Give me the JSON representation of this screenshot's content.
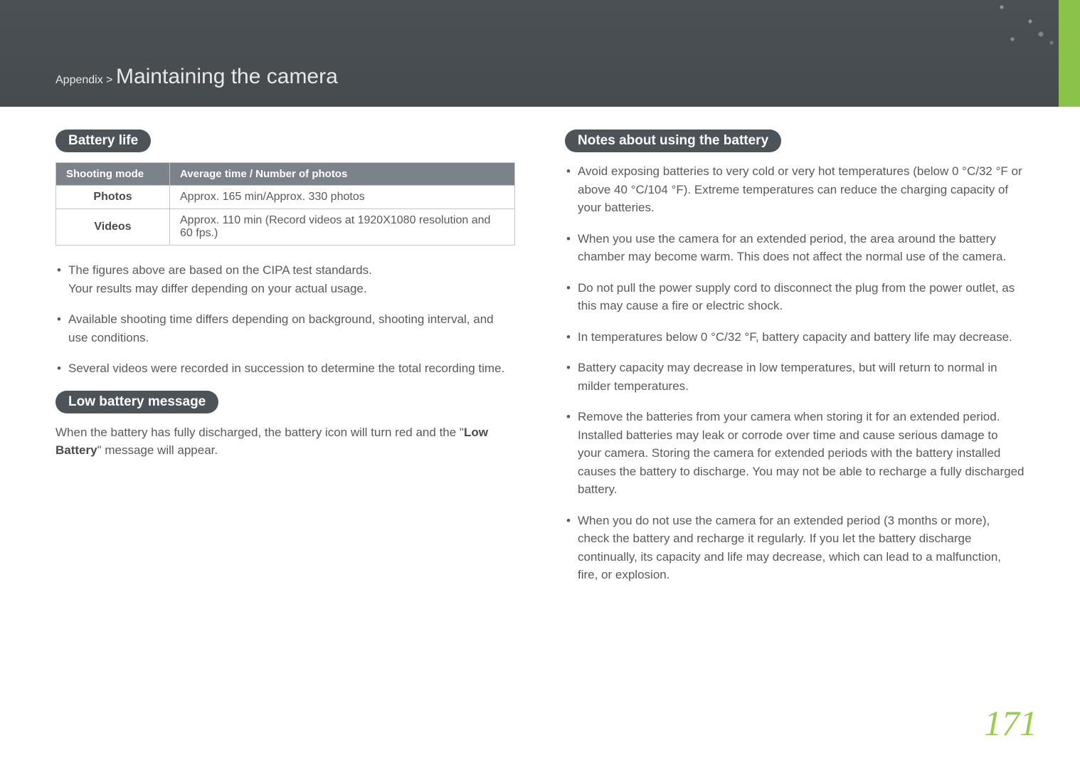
{
  "header": {
    "breadcrumb_prefix": "Appendix > ",
    "breadcrumb_title": "Maintaining the camera"
  },
  "left": {
    "battery_life_heading": "Battery life",
    "table": {
      "col1": "Shooting mode",
      "col2": "Average time / Number of photos",
      "row1_mode": "Photos",
      "row1_val": "Approx. 165 min/Approx. 330 photos",
      "row2_mode": "Videos",
      "row2_val": "Approx. 110 min (Record videos at 1920X1080 resolution and 60 fps.)"
    },
    "bullets": {
      "b1_line1": "The figures above are based on the CIPA test standards.",
      "b1_line2": "Your results may differ depending on your actual usage.",
      "b2": "Available shooting time differs depending on background, shooting interval, and use conditions.",
      "b3": "Several videos were recorded in succession to determine the total recording time."
    },
    "low_battery_heading": "Low battery message",
    "low_battery_text_pre": "When the battery has fully discharged, the battery icon will turn red and the \"",
    "low_battery_bold": "Low Battery",
    "low_battery_text_post": "\" message will appear."
  },
  "right": {
    "notes_heading": "Notes about using the battery",
    "bullets": {
      "n1": "Avoid exposing batteries to very cold or very hot temperatures (below 0 °C/32 °F or above 40 °C/104 °F). Extreme temperatures can reduce the charging capacity of your batteries.",
      "n2": "When you use the camera for an extended period, the area around the battery chamber may become warm. This does not affect the normal use of the camera.",
      "n3": "Do not pull the power supply cord to disconnect the plug from the power outlet, as this may cause a fire or electric shock.",
      "n4": "In temperatures below 0 °C/32 °F, battery capacity and battery life may decrease.",
      "n5": "Battery capacity may decrease in low temperatures, but will return to normal in milder temperatures.",
      "n6": "Remove the batteries from your camera when storing it for an extended period. Installed batteries may leak or corrode over time and cause serious damage to your camera. Storing the camera for extended periods with the battery installed causes the battery to discharge. You may not be able to recharge a fully discharged battery.",
      "n7": "When you do not use the camera for an extended period (3 months or more), check the battery and recharge it regularly. If you let the battery discharge continually, its capacity and life may decrease, which can lead to a malfunction, fire, or explosion."
    }
  },
  "page_number": "171"
}
